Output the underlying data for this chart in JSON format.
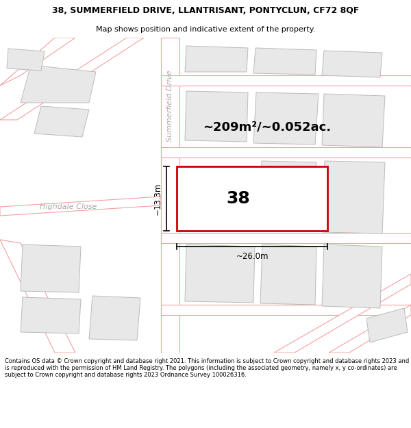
{
  "title_line1": "38, SUMMERFIELD DRIVE, LLANTRISANT, PONTYCLUN, CF72 8QF",
  "title_line2": "Map shows position and indicative extent of the property.",
  "footer_text": "Contains OS data © Crown copyright and database right 2021. This information is subject to Crown copyright and database rights 2023 and is reproduced with the permission of HM Land Registry. The polygons (including the associated geometry, namely x, y co-ordinates) are subject to Crown copyright and database rights 2023 Ordnance Survey 100026316.",
  "area_label": "~209m²/~0.052ac.",
  "house_number": "38",
  "dim_width": "~26.0m",
  "dim_height": "~13.3m",
  "street_label": "Summerfield Drive",
  "street_label2": "Highdale Close",
  "bg_map_color": "#f7f7f7",
  "building_fill": "#e8e8e8",
  "building_stroke": "#bbbbbb",
  "road_color": "#f4a0a0",
  "road_fill": "#ffffff",
  "highlighted_polygon_color": "#cc0000",
  "text_color_street": "#aaaaaa",
  "title_fontsize": 9.0,
  "subtitle_fontsize": 8.0,
  "footer_fontsize": 6.0,
  "area_fontsize": 13.0,
  "number_fontsize": 18.0,
  "dim_fontsize": 8.5,
  "street_fontsize": 8.0
}
